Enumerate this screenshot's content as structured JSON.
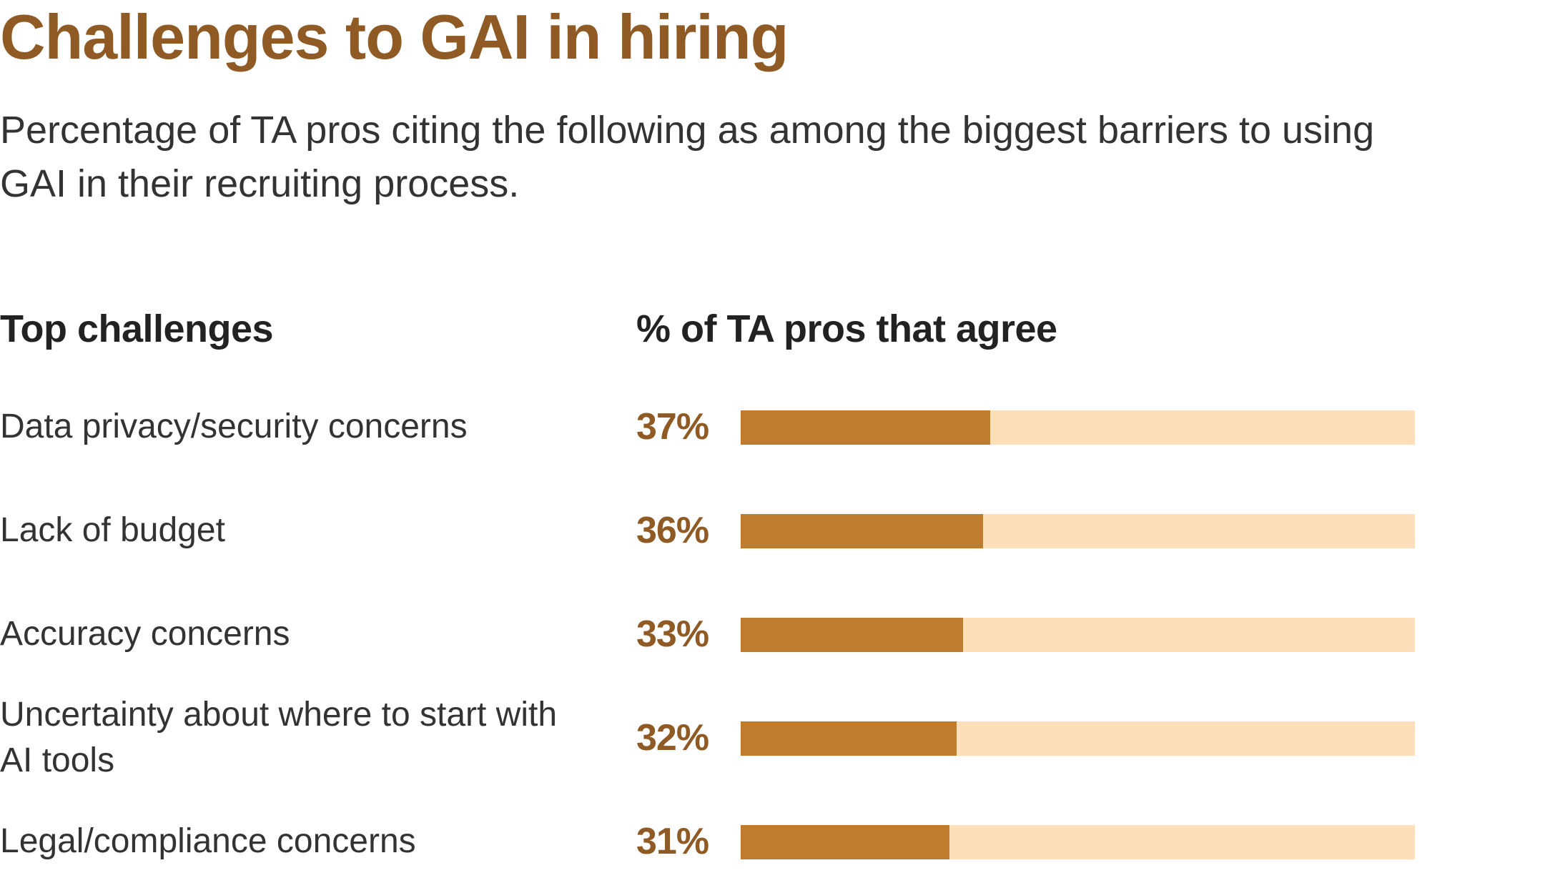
{
  "title": "Challenges to GAI in hiring",
  "subtitle": "Percentage of TA pros citing the following as among the biggest barriers to using GAI in their recruiting process.",
  "column_headers": {
    "left": "Top challenges",
    "right": "% of TA pros that agree"
  },
  "colors": {
    "title": "#8f5a24",
    "value_text": "#8f5a24",
    "bar_fill": "#c07c2e",
    "bar_track": "#fde0b9"
  },
  "chart_data": {
    "type": "bar",
    "orientation": "horizontal",
    "title": "Challenges to GAI in hiring",
    "subtitle": "Percentage of TA pros citing the following as among the biggest barriers to using GAI in their recruiting process.",
    "xlabel": "% of TA pros that agree",
    "ylabel": "Top challenges",
    "xlim": [
      0,
      100
    ],
    "grid": false,
    "categories": [
      "Data privacy/security concerns",
      "Lack of budget",
      "Accuracy concerns",
      "Uncertainty about where to start with AI tools",
      "Legal/compliance concerns"
    ],
    "values": [
      37,
      36,
      33,
      32,
      31
    ],
    "value_labels": [
      "37%",
      "36%",
      "33%",
      "32%",
      "31%"
    ]
  }
}
